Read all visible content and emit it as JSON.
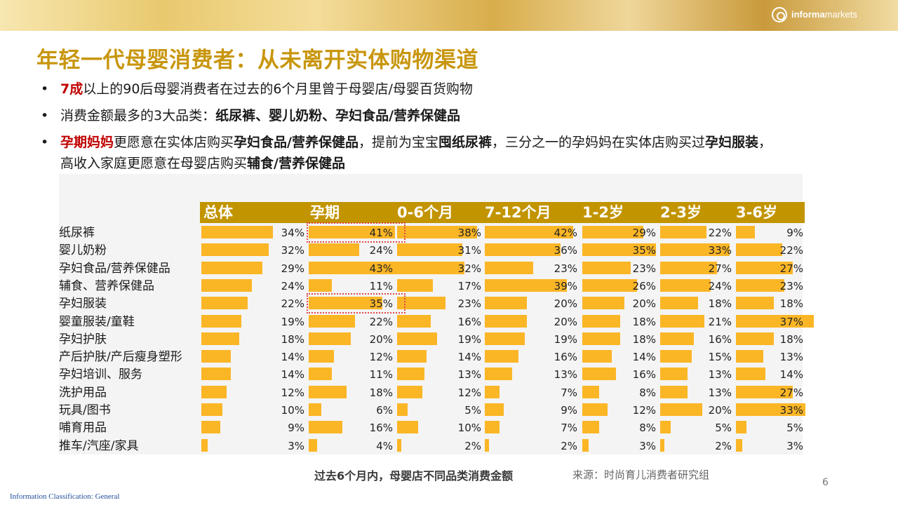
{
  "header": {
    "logo_text_bold": "informa",
    "logo_text": "markets"
  },
  "title": "年轻一代母婴消费者：从未离开实体购物渠道",
  "bullets": {
    "b1": {
      "red": "7成",
      "rest": "以上的90后母婴消费者在过去的6个月里曾于母婴店/母婴百货购物"
    },
    "b2": {
      "text": "消费金额最多的3大品类：",
      "bold": "纸尿裤、婴儿奶粉、孕妇食品/营养保健品"
    },
    "b3": {
      "red": "孕期妈妈",
      "t1": "更愿意在实体店购买",
      "b1": "孕妇食品/营养保健品",
      "t2": "，提前为宝宝",
      "b2": "囤纸尿裤",
      "t3": "，三分之一的孕妈妈在实体店购买过",
      "b3": "孕妇服装",
      "t4": "，",
      "t5": "高收入家庭更愿意在母婴店购买",
      "b4": "辅食/营养保健品"
    }
  },
  "chart_data": {
    "type": "table",
    "unit": "%",
    "caption": "过去6个月内，母婴店不同品类消费金额",
    "source": "来源：时尚育儿消费者研究组",
    "columns": [
      "总体",
      "孕期",
      "0-6个月",
      "7-12个月",
      "1-2岁",
      "2-3岁",
      "3-6岁"
    ],
    "categories": [
      "纸尿裤",
      "婴儿奶粉",
      "孕妇食品/营养保健品",
      "辅食、营养保健品",
      "孕妇服装",
      "婴童服装/童鞋",
      "孕妇护肤",
      "产后护肤/产后瘦身塑形",
      "孕妇培训、服务",
      "洗护用品",
      "玩具/图书",
      "哺育用品",
      "推车/汽座/家具"
    ],
    "series": [
      {
        "name": "总体",
        "values": [
          34,
          32,
          29,
          24,
          22,
          19,
          18,
          14,
          14,
          12,
          10,
          9,
          3
        ]
      },
      {
        "name": "孕期",
        "values": [
          41,
          24,
          43,
          11,
          35,
          22,
          20,
          12,
          11,
          18,
          6,
          16,
          4
        ]
      },
      {
        "name": "0-6个月",
        "values": [
          38,
          31,
          32,
          17,
          23,
          16,
          19,
          14,
          13,
          12,
          5,
          10,
          2
        ]
      },
      {
        "name": "7-12个月",
        "values": [
          42,
          36,
          23,
          39,
          20,
          20,
          19,
          16,
          13,
          7,
          9,
          7,
          2
        ]
      },
      {
        "name": "1-2岁",
        "values": [
          29,
          35,
          23,
          26,
          20,
          18,
          18,
          14,
          16,
          8,
          12,
          8,
          3
        ]
      },
      {
        "name": "2-3岁",
        "values": [
          22,
          33,
          27,
          24,
          18,
          21,
          16,
          15,
          13,
          13,
          20,
          5,
          2
        ]
      },
      {
        "name": "3-6岁",
        "values": [
          9,
          22,
          27,
          23,
          18,
          37,
          18,
          13,
          14,
          27,
          33,
          5,
          3
        ]
      }
    ],
    "highlights": [
      {
        "column": "孕期",
        "category": "纸尿裤"
      },
      {
        "column": "孕期",
        "category": "孕妇服装"
      }
    ],
    "bar_color": "#fbb626",
    "header_color": "#c29400"
  },
  "footer": {
    "page_number": "6",
    "classification": "Information Classification: General"
  },
  "colors": {
    "title": "#c8960e",
    "emphasis": "#c00000"
  }
}
